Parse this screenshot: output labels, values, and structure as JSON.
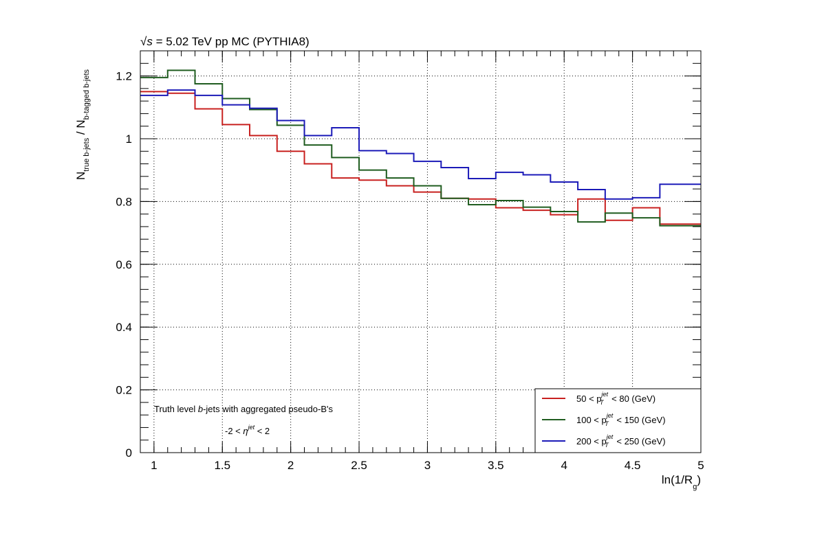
{
  "chart_data": {
    "type": "line",
    "title_prefix": "√",
    "title_s": "s",
    "title_rest": " = 5.02 TeV pp MC (PYTHIA8)",
    "xlabel": "ln(1/R",
    "xlabel_sub": "g",
    "xlabel_close": ")",
    "ylabel": {
      "n1": "N",
      "sub1": "true b-jets",
      "sep": " / N",
      "sub2": "b-tagged b-jets"
    },
    "xlim": [
      0.9,
      5.0
    ],
    "ylim": [
      0,
      1.28
    ],
    "x_tick_labels": [
      "1",
      "1.5",
      "2",
      "2.5",
      "3",
      "3.5",
      "4",
      "4.5",
      "5"
    ],
    "x_tick_values": [
      1,
      1.5,
      2,
      2.5,
      3,
      3.5,
      4,
      4.5,
      5
    ],
    "y_tick_labels": [
      "0",
      "0.2",
      "0.4",
      "0.6",
      "0.8",
      "1",
      "1.2"
    ],
    "y_tick_values": [
      0,
      0.2,
      0.4,
      0.6,
      0.8,
      1.0,
      1.2
    ],
    "grid": true,
    "bin_edges": [
      0.9,
      1.1,
      1.3,
      1.5,
      1.7,
      1.9,
      2.1,
      2.3,
      2.5,
      2.7,
      2.9,
      3.1,
      3.3,
      3.5,
      3.7,
      3.9,
      4.1,
      4.3,
      4.5,
      4.7,
      4.9,
      5.0
    ],
    "series": [
      {
        "name_prefix": "50 < p",
        "name_sup": "jet",
        "name_sub": "T",
        "name_suffix": " < 80 (GeV)",
        "color": "#c8201f",
        "values": [
          1.15,
          1.145,
          1.095,
          1.045,
          1.01,
          0.96,
          0.92,
          0.875,
          0.868,
          0.85,
          0.83,
          0.81,
          0.808,
          0.78,
          0.772,
          0.758,
          0.808,
          0.74,
          0.78,
          0.728,
          0.728
        ]
      },
      {
        "name_prefix": "100 < p",
        "name_sup": "jet",
        "name_sub": "T",
        "name_suffix": " < 150 (GeV)",
        "color": "#1f5c1f",
        "values": [
          1.195,
          1.218,
          1.175,
          1.128,
          1.093,
          1.043,
          0.98,
          0.94,
          0.9,
          0.875,
          0.85,
          0.81,
          0.79,
          0.803,
          0.782,
          0.768,
          0.735,
          0.763,
          0.748,
          0.723,
          0.723
        ]
      },
      {
        "name_prefix": "200 < p",
        "name_sup": "jet",
        "name_sub": "T",
        "name_suffix": " < 250 (GeV)",
        "color": "#1b1ab8",
        "values": [
          1.138,
          1.155,
          1.138,
          1.108,
          1.097,
          1.058,
          1.01,
          1.035,
          0.962,
          0.953,
          0.928,
          0.908,
          0.873,
          0.893,
          0.885,
          0.862,
          0.838,
          0.808,
          0.812,
          0.855,
          0.855
        ]
      }
    ],
    "legend_position": "bottom-right",
    "annotations": {
      "line1_pre": "Truth level ",
      "line1_b": "b",
      "line1_post": "-jets with aggregated pseudo-B's",
      "line2_pre": "-2 < ",
      "line2_eta": "η",
      "line2_sup": "jet",
      "line2_post": " < 2"
    }
  }
}
